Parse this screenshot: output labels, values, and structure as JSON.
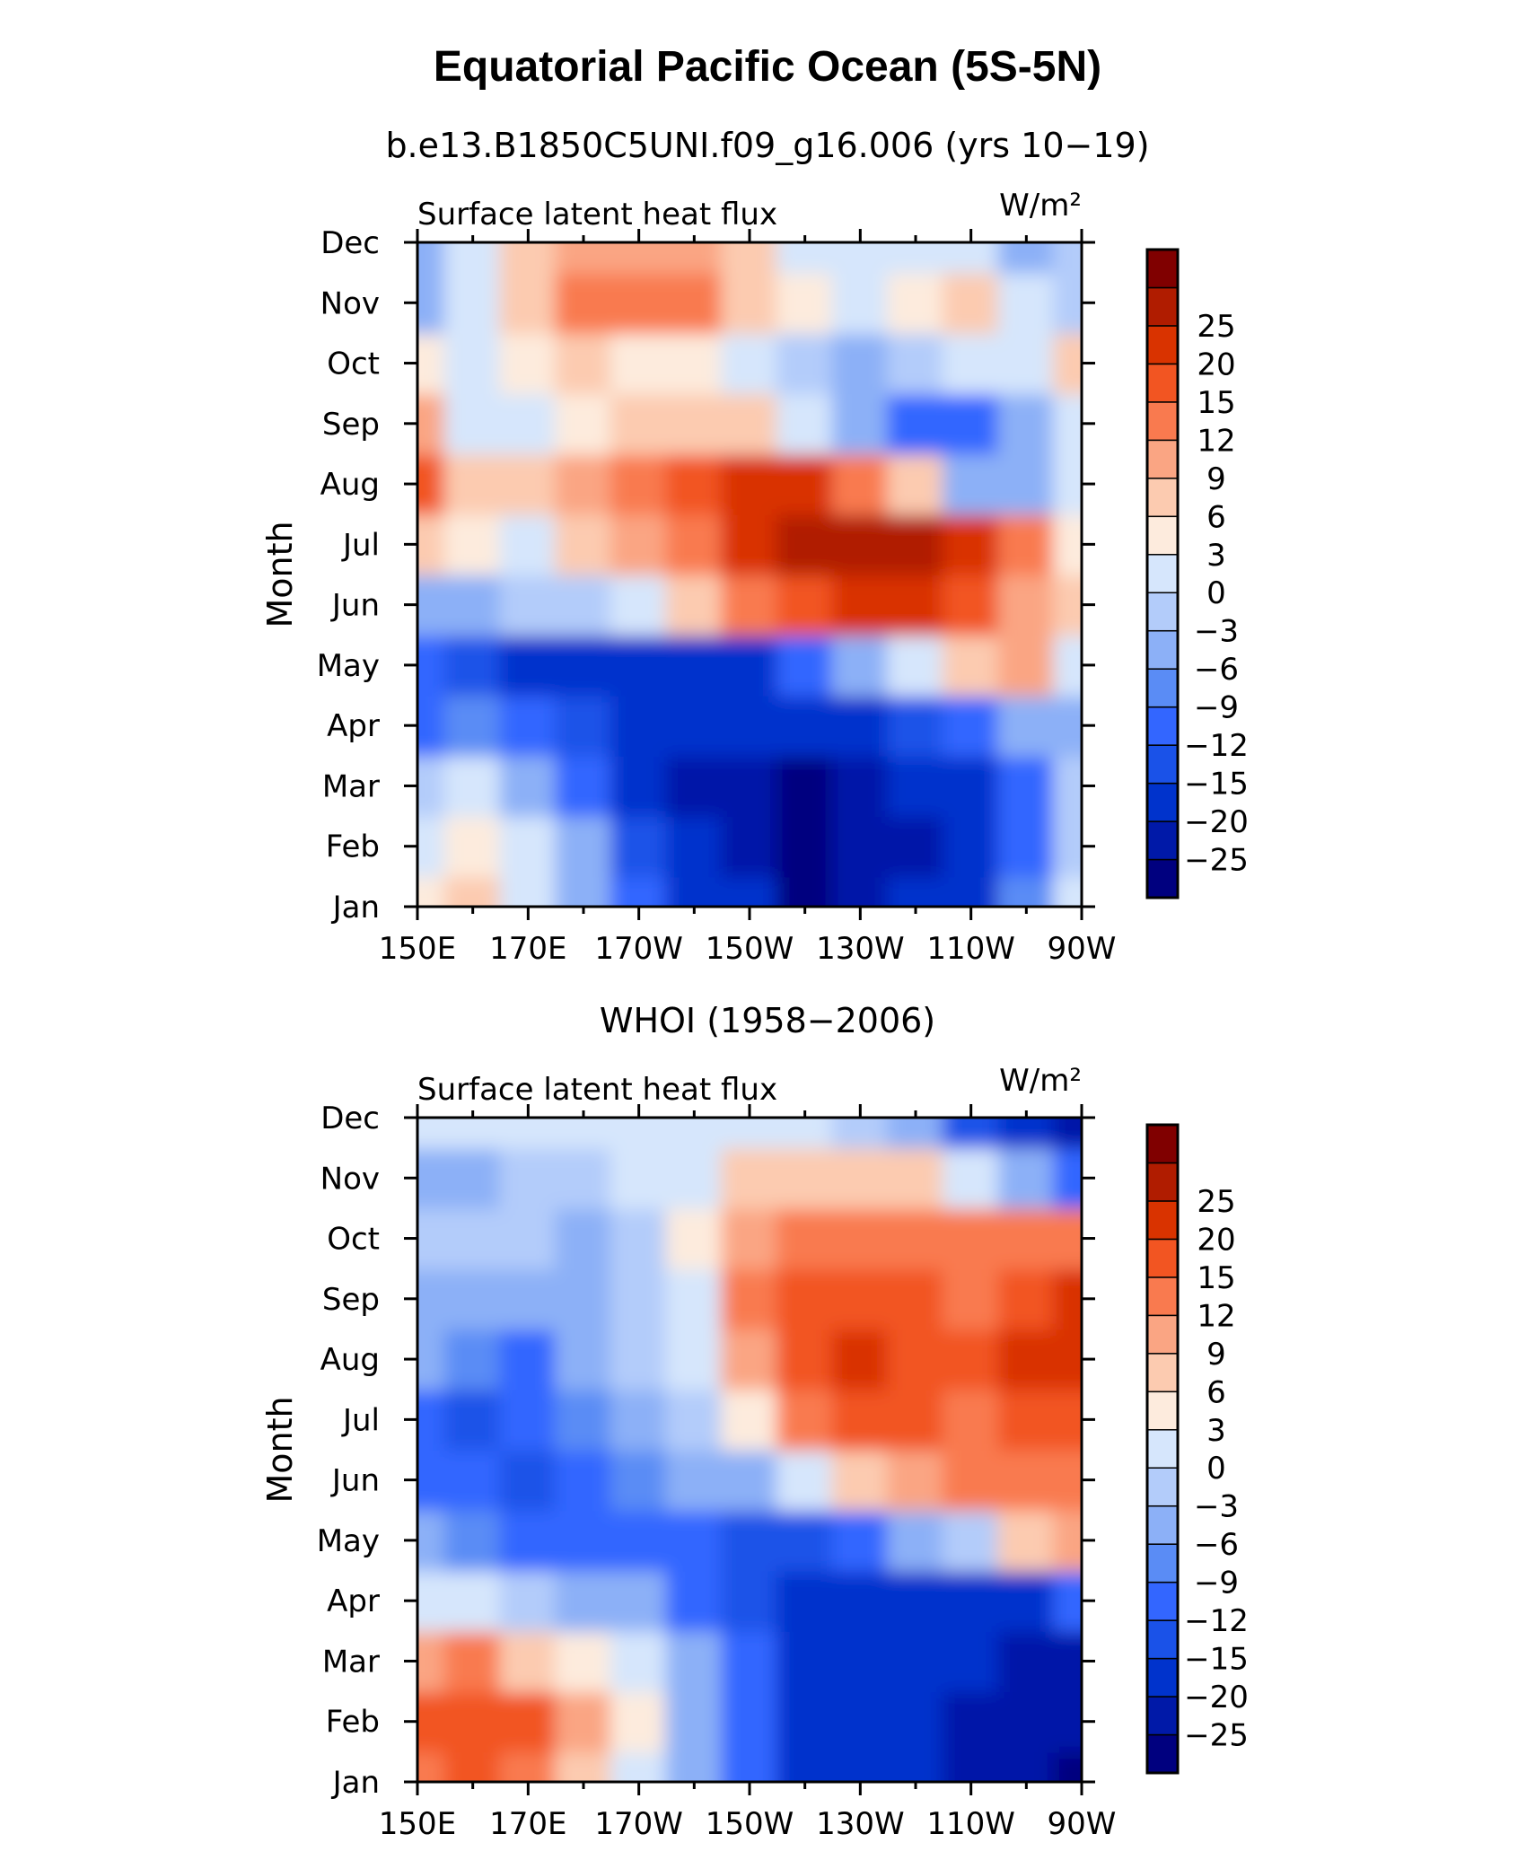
{
  "figure": {
    "title": "Equatorial Pacific Ocean (5S-5N)"
  },
  "colorbar": {
    "colors": [
      "#00007f",
      "#0019a8",
      "#0033cc",
      "#1a52e8",
      "#3366ff",
      "#5a8cf5",
      "#8cb0f7",
      "#b3ccfa",
      "#d6e6fc",
      "#fdebdd",
      "#fccbb0",
      "#faa583",
      "#f97a4f",
      "#f25522",
      "#d93300",
      "#b01c00",
      "#800000"
    ],
    "levels": [
      "−25",
      "−20",
      "−15",
      "−12",
      "−9",
      "−6",
      "−3",
      "0",
      "3",
      "6",
      "9",
      "12",
      "15",
      "20",
      "25"
    ]
  },
  "chart_data": [
    {
      "type": "heatmap",
      "title": "b.e13.B1850C5UNI.f09_g16.006 (yrs 10−19)",
      "left_label": "Surface latent heat flux",
      "units": "W/m²",
      "ylabel": "Month",
      "xlabel": "",
      "x_ticks": [
        "150E",
        "170E",
        "170W",
        "150W",
        "130W",
        "110W",
        "90W"
      ],
      "x_values_deg_east": [
        150,
        160,
        170,
        180,
        190,
        200,
        210,
        220,
        230,
        240,
        250,
        260,
        270
      ],
      "y_ticks": [
        "Jan",
        "Feb",
        "Mar",
        "Apr",
        "May",
        "Jun",
        "Jul",
        "Aug",
        "Sep",
        "Oct",
        "Nov",
        "Dec"
      ],
      "z": [
        [
          4,
          6,
          2,
          -6,
          -12,
          -16,
          -20,
          -26,
          -22,
          -20,
          -16,
          -8,
          0
        ],
        [
          2,
          4,
          0,
          -6,
          -14,
          -18,
          -22,
          -27,
          -24,
          -22,
          -18,
          -10,
          -2
        ],
        [
          -2,
          0,
          -4,
          -10,
          -16,
          -22,
          -24,
          -26,
          -24,
          -20,
          -16,
          -10,
          -2
        ],
        [
          -10,
          -8,
          -12,
          -14,
          -18,
          -20,
          -20,
          -20,
          -18,
          -14,
          -10,
          -4,
          -4
        ],
        [
          -12,
          -14,
          -18,
          -20,
          -20,
          -18,
          -16,
          -10,
          -4,
          2,
          6,
          10,
          2
        ],
        [
          -6,
          -4,
          -2,
          -2,
          2,
          6,
          14,
          18,
          22,
          24,
          16,
          10,
          6
        ],
        [
          8,
          4,
          2,
          6,
          10,
          14,
          22,
          28,
          28,
          26,
          20,
          12,
          4
        ],
        [
          16,
          6,
          8,
          10,
          14,
          18,
          22,
          20,
          14,
          6,
          -4,
          -6,
          0
        ],
        [
          10,
          2,
          2,
          4,
          6,
          8,
          6,
          2,
          -6,
          -10,
          -12,
          -4,
          0
        ],
        [
          4,
          2,
          4,
          6,
          4,
          4,
          2,
          -2,
          -4,
          -2,
          0,
          2,
          6
        ],
        [
          -4,
          2,
          8,
          12,
          14,
          12,
          8,
          4,
          2,
          4,
          6,
          2,
          -2
        ],
        [
          -6,
          0,
          6,
          10,
          10,
          10,
          6,
          2,
          0,
          2,
          2,
          -4,
          -2
        ]
      ]
    },
    {
      "type": "heatmap",
      "title": "WHOI (1958−2006)",
      "left_label": "Surface latent heat flux",
      "units": "W/m²",
      "ylabel": "Month",
      "xlabel": "",
      "x_ticks": [
        "150E",
        "170E",
        "170W",
        "150W",
        "130W",
        "110W",
        "90W"
      ],
      "x_values_deg_east": [
        150,
        160,
        170,
        180,
        190,
        200,
        210,
        220,
        230,
        240,
        250,
        260,
        270
      ],
      "y_ticks": [
        "Jan",
        "Feb",
        "Mar",
        "Apr",
        "May",
        "Jun",
        "Jul",
        "Aug",
        "Sep",
        "Oct",
        "Nov",
        "Dec"
      ],
      "z": [
        [
          14,
          16,
          14,
          8,
          2,
          -6,
          -12,
          -18,
          -18,
          -20,
          -22,
          -24,
          -26
        ],
        [
          16,
          18,
          16,
          10,
          4,
          -4,
          -10,
          -16,
          -18,
          -20,
          -22,
          -24,
          -24
        ],
        [
          10,
          12,
          8,
          4,
          0,
          -6,
          -12,
          -18,
          -16,
          -18,
          -20,
          -22,
          -22
        ],
        [
          2,
          0,
          -2,
          -4,
          -6,
          -10,
          -14,
          -18,
          -16,
          -16,
          -18,
          -16,
          -10
        ],
        [
          -6,
          -8,
          -10,
          -10,
          -10,
          -12,
          -14,
          -14,
          -10,
          -6,
          -2,
          6,
          10
        ],
        [
          -10,
          -12,
          -14,
          -10,
          -8,
          -6,
          -4,
          2,
          6,
          10,
          12,
          14,
          14
        ],
        [
          -10,
          -14,
          -10,
          -8,
          -6,
          -2,
          4,
          12,
          16,
          16,
          14,
          18,
          18
        ],
        [
          -6,
          -8,
          -10,
          -4,
          -2,
          0,
          10,
          16,
          20,
          18,
          16,
          20,
          20
        ],
        [
          -4,
          -4,
          -6,
          -4,
          -2,
          2,
          12,
          16,
          18,
          16,
          14,
          18,
          24
        ],
        [
          -2,
          -2,
          -2,
          -4,
          -2,
          4,
          10,
          14,
          14,
          12,
          14,
          14,
          12
        ],
        [
          -4,
          -4,
          -2,
          -2,
          0,
          2,
          6,
          8,
          8,
          6,
          2,
          -6,
          -12
        ],
        [
          0,
          2,
          2,
          2,
          2,
          2,
          2,
          2,
          -2,
          -6,
          -14,
          -20,
          -24
        ]
      ]
    }
  ]
}
